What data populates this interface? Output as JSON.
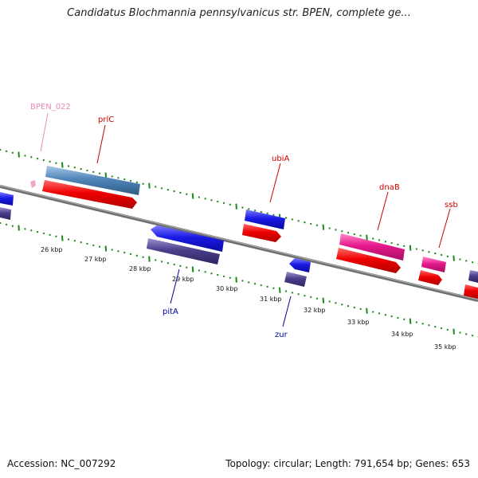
{
  "title": "Candidatus Blochmannia pennsylvanicus str. BPEN, complete ge...",
  "footer": {
    "accession": "Accession: NC_007292",
    "summary": "Topology: circular; Length: 791,654 bp; Genes: 653"
  },
  "kbp_labels": [
    "26 kbp",
    "27 kbp",
    "28 kbp",
    "29 kbp",
    "30 kbp",
    "31 kbp",
    "32 kbp",
    "33 kbp",
    "34 kbp",
    "35 kbp"
  ],
  "gene_labels": [
    {
      "name": "BPEN_022",
      "color": "#e889b8"
    },
    {
      "name": "prlC",
      "color": "#cc0000"
    },
    {
      "name": "ubiA",
      "color": "#cc0000"
    },
    {
      "name": "dnaB",
      "color": "#cc0000"
    },
    {
      "name": "ssb",
      "color": "#cc0000"
    },
    {
      "name": "pitA",
      "color": "#0000aa"
    },
    {
      "name": "zur",
      "color": "#0000aa"
    }
  ],
  "colors": {
    "backbone": "#808080",
    "ticks": "#1a8a1a",
    "forward_gene": "#1a1ae6",
    "forward_cds": "#e60000",
    "reverse_gene": "#1a1ae6",
    "reverse_cds": "#4a3f8a",
    "pink_gene": "#e6198c",
    "steel_gene": "#4f86b8"
  }
}
